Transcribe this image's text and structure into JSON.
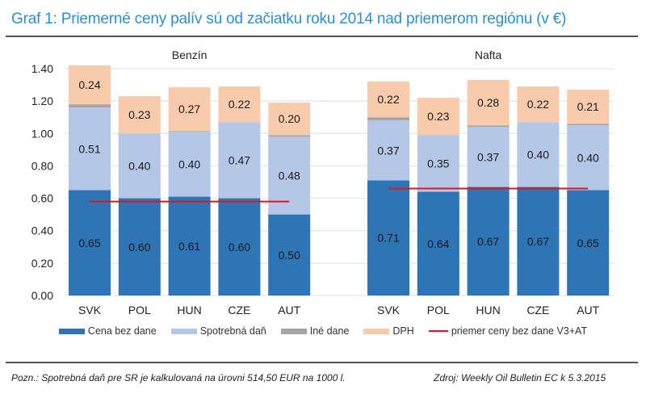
{
  "title": "Graf 1: Priemerné ceny palív  sú od začiatku roku 2014 nad priemerom regiónu (v €)",
  "footer": {
    "note": "Pozn.: Spotrebná daň pre SR je kalkulovaná na úrovni 514,50 EUR na 1000 l.",
    "source": "Zdroj: Weekly Oil Bulletin EC k 5.3.2015"
  },
  "chart_data": {
    "type": "bar",
    "stacked": true,
    "ylim": [
      0,
      1.4
    ],
    "yticks": [
      "0.00",
      "0.20",
      "0.40",
      "0.60",
      "0.80",
      "1.00",
      "1.20",
      "1.40"
    ],
    "grid": true,
    "legend_position": "bottom",
    "colors": {
      "cena": "#2e75b6",
      "spotrebna": "#b4c7e7",
      "ine": "#a5a5a5",
      "dph": "#f8cbad",
      "avg": "#e8111c"
    },
    "legend": [
      {
        "key": "cena",
        "label": "Cena bez dane",
        "kind": "bar"
      },
      {
        "key": "spotrebna",
        "label": "Spotrebná daň",
        "kind": "bar"
      },
      {
        "key": "ine",
        "label": "Iné dane",
        "kind": "bar"
      },
      {
        "key": "dph",
        "label": "DPH",
        "kind": "bar"
      },
      {
        "key": "avg",
        "label": "priemer ceny bez dane V3+AT",
        "kind": "line"
      }
    ],
    "panels": [
      {
        "title": "Benzín",
        "categories": [
          "SVK",
          "POL",
          "HUN",
          "CZE",
          "AUT"
        ],
        "series": [
          {
            "key": "cena",
            "name": "Cena bez dane",
            "values": [
              0.65,
              0.6,
              0.61,
              0.6,
              0.5
            ],
            "labels": [
              "0.65",
              "0.60",
              "0.61",
              "0.60",
              "0.50"
            ]
          },
          {
            "key": "spotrebna",
            "name": "Spotrebná daň",
            "values": [
              0.51,
              0.4,
              0.4,
              0.47,
              0.48
            ],
            "labels": [
              "0.51",
              "0.40",
              "0.40",
              "0.47",
              "0.48"
            ]
          },
          {
            "key": "ine",
            "name": "Iné dane",
            "values": [
              0.02,
              0.0,
              0.005,
              0.0,
              0.01
            ],
            "labels": null
          },
          {
            "key": "dph",
            "name": "DPH",
            "values": [
              0.24,
              0.23,
              0.27,
              0.22,
              0.2
            ],
            "labels": [
              "0.24",
              "0.23",
              "0.27",
              "0.22",
              "0.20"
            ]
          }
        ],
        "average": 0.58
      },
      {
        "title": "Nafta",
        "categories": [
          "SVK",
          "POL",
          "HUN",
          "CZE",
          "AUT"
        ],
        "series": [
          {
            "key": "cena",
            "name": "Cena bez dane",
            "values": [
              0.71,
              0.64,
              0.67,
              0.67,
              0.65
            ],
            "labels": [
              "0.71",
              "0.64",
              "0.67",
              "0.67",
              "0.65"
            ]
          },
          {
            "key": "spotrebna",
            "name": "Spotrebná daň",
            "values": [
              0.37,
              0.35,
              0.37,
              0.4,
              0.4
            ],
            "labels": [
              "0.37",
              "0.35",
              "0.37",
              "0.40",
              "0.40"
            ]
          },
          {
            "key": "ine",
            "name": "Iné dane",
            "values": [
              0.02,
              0.0,
              0.01,
              0.0,
              0.01
            ],
            "labels": null
          },
          {
            "key": "dph",
            "name": "DPH",
            "values": [
              0.22,
              0.23,
              0.28,
              0.22,
              0.21
            ],
            "labels": [
              "0.22",
              "0.23",
              "0.28",
              "0.22",
              "0.21"
            ]
          }
        ],
        "average": 0.66
      }
    ]
  }
}
